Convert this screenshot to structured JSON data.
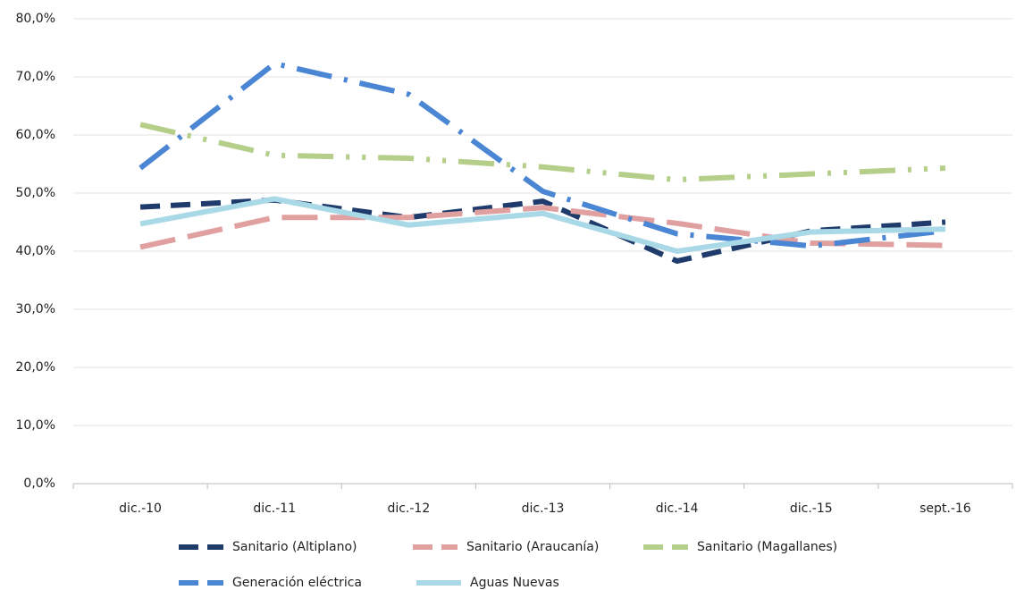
{
  "chart_data": {
    "type": "line",
    "categories": [
      "dic.-10",
      "dic.-11",
      "dic.-12",
      "dic.-13",
      "dic.-14",
      "dic.-15",
      "sept.-16"
    ],
    "series": [
      {
        "name": "Sanitario (Altiplano)",
        "color": "#1f3b6b",
        "dash": "dash",
        "values": [
          47.6,
          48.8,
          45.8,
          48.6,
          38.3,
          43.5,
          45.0
        ]
      },
      {
        "name": "Sanitario (Araucanía)",
        "color": "#e0a0a0",
        "dash": "long-dash",
        "values": [
          40.7,
          45.8,
          45.8,
          47.5,
          44.8,
          41.4,
          41.0
        ]
      },
      {
        "name": "Sanitario (Magallanes)",
        "color": "#b5cf8a",
        "dash": "long-dash-dot-dot",
        "values": [
          61.8,
          56.5,
          56.0,
          54.5,
          52.3,
          53.3,
          54.3
        ]
      },
      {
        "name": "Generación eléctrica",
        "color": "#4a86d4",
        "dash": "long-dash-dot",
        "values": [
          54.3,
          72.3,
          67.0,
          50.3,
          43.0,
          40.9,
          43.5
        ]
      },
      {
        "name": "Aguas Nuevas",
        "color": "#a9d8e6",
        "dash": "solid",
        "values": [
          44.7,
          49.0,
          44.5,
          46.5,
          40.0,
          43.3,
          43.8
        ]
      }
    ],
    "ylim": [
      0,
      80
    ],
    "yticks": [
      {
        "value": 0,
        "label": "0,0%"
      },
      {
        "value": 10,
        "label": "10,0%"
      },
      {
        "value": 20,
        "label": "20,0%"
      },
      {
        "value": 30,
        "label": "30,0%"
      },
      {
        "value": 40,
        "label": "40,0%"
      },
      {
        "value": 50,
        "label": "50,0%"
      },
      {
        "value": 60,
        "label": "60,0%"
      },
      {
        "value": 70,
        "label": "70,0%"
      },
      {
        "value": 80,
        "label": "80,0%"
      }
    ],
    "grid": true,
    "legend": "bottom"
  }
}
